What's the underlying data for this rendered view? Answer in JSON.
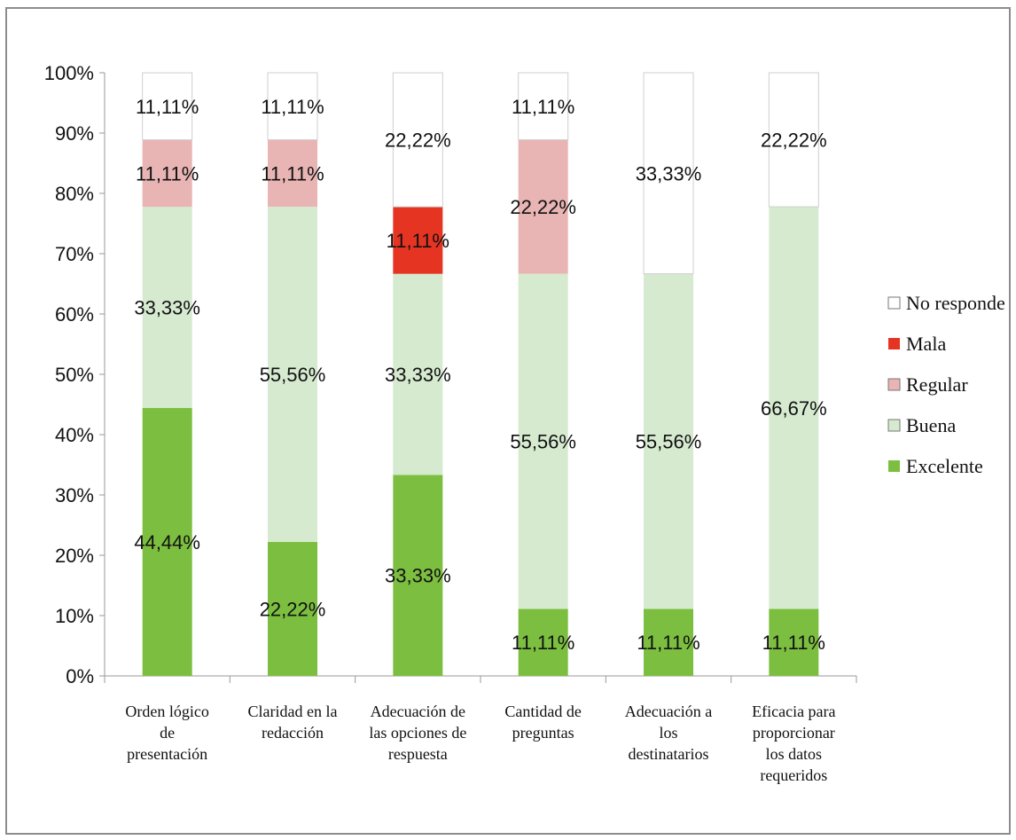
{
  "chart_data": {
    "type": "bar",
    "stacked": true,
    "categories": [
      [
        "Orden lógico",
        "de",
        "presentación"
      ],
      [
        "Claridad en la",
        "redacción"
      ],
      [
        "Adecuación de",
        "las opciones de",
        "respuesta"
      ],
      [
        "Cantidad de",
        "preguntas"
      ],
      [
        "Adecuación a",
        "los",
        "destinatarios"
      ],
      [
        "Eficacia para",
        "proporcionar",
        "los datos",
        "requeridos"
      ]
    ],
    "series": [
      {
        "name": "Excelente",
        "color": "#7cbf40",
        "values": [
          44.44,
          22.22,
          33.33,
          11.11,
          11.11,
          11.11
        ],
        "labels": [
          "44,44%",
          "22,22%",
          "33,33%",
          "11,11%",
          "11,11%",
          "11,11%"
        ]
      },
      {
        "name": "Buena",
        "color": "#d6ead0",
        "values": [
          33.33,
          55.56,
          33.33,
          55.56,
          55.56,
          66.67
        ],
        "labels": [
          "33,33%",
          "55,56%",
          "33,33%",
          "55,56%",
          "55,56%",
          "66,67%"
        ]
      },
      {
        "name": "Regular",
        "color": "#e8b4b4",
        "values": [
          11.11,
          11.11,
          0,
          22.22,
          0,
          0
        ],
        "labels": [
          "11,11%",
          "11,11%",
          "",
          "22,22%",
          "",
          ""
        ]
      },
      {
        "name": "Mala",
        "color": "#e53422",
        "values": [
          0,
          0,
          11.11,
          0,
          0,
          0
        ],
        "labels": [
          "",
          "",
          "11,11%",
          "",
          "",
          ""
        ]
      },
      {
        "name": "No responde",
        "color": "#ffffff",
        "values": [
          11.11,
          11.11,
          22.22,
          11.11,
          33.33,
          22.22
        ],
        "labels": [
          "11,11%",
          "11,11%",
          "22,22%",
          "11,11%",
          "33,33%",
          "22,22%"
        ]
      }
    ],
    "y_ticks": [
      "0%",
      "10%",
      "20%",
      "30%",
      "40%",
      "50%",
      "60%",
      "70%",
      "80%",
      "90%",
      "100%"
    ],
    "ylim": [
      0,
      100
    ],
    "legend_position": "right",
    "legend_order": [
      "No responde",
      "Mala",
      "Regular",
      "Buena",
      "Excelente"
    ]
  }
}
